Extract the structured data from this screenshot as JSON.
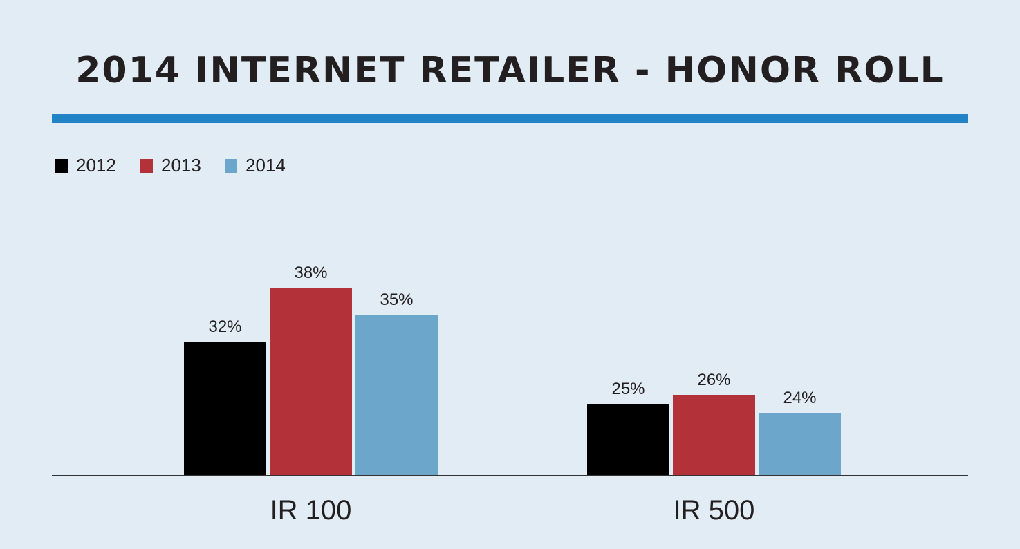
{
  "chart_data": {
    "type": "bar",
    "title": "2014 INTERNET RETAILER - HONOR ROLL",
    "categories": [
      "IR 100",
      "IR 500"
    ],
    "series": [
      {
        "name": "2012",
        "color": "#000000",
        "values": [
          32,
          25
        ],
        "labels": [
          "32%",
          "25%"
        ]
      },
      {
        "name": "2013",
        "color": "#b33138",
        "values": [
          38,
          26
        ],
        "labels": [
          "38%",
          "26%"
        ]
      },
      {
        "name": "2014",
        "color": "#6da6cb",
        "values": [
          35,
          24
        ],
        "labels": [
          "35%",
          "24%"
        ]
      }
    ],
    "xlabel": "",
    "ylabel": "",
    "ylim": [
      17,
      38
    ],
    "grid": false,
    "legend": "top-left",
    "accent_color": "#2283c7"
  }
}
